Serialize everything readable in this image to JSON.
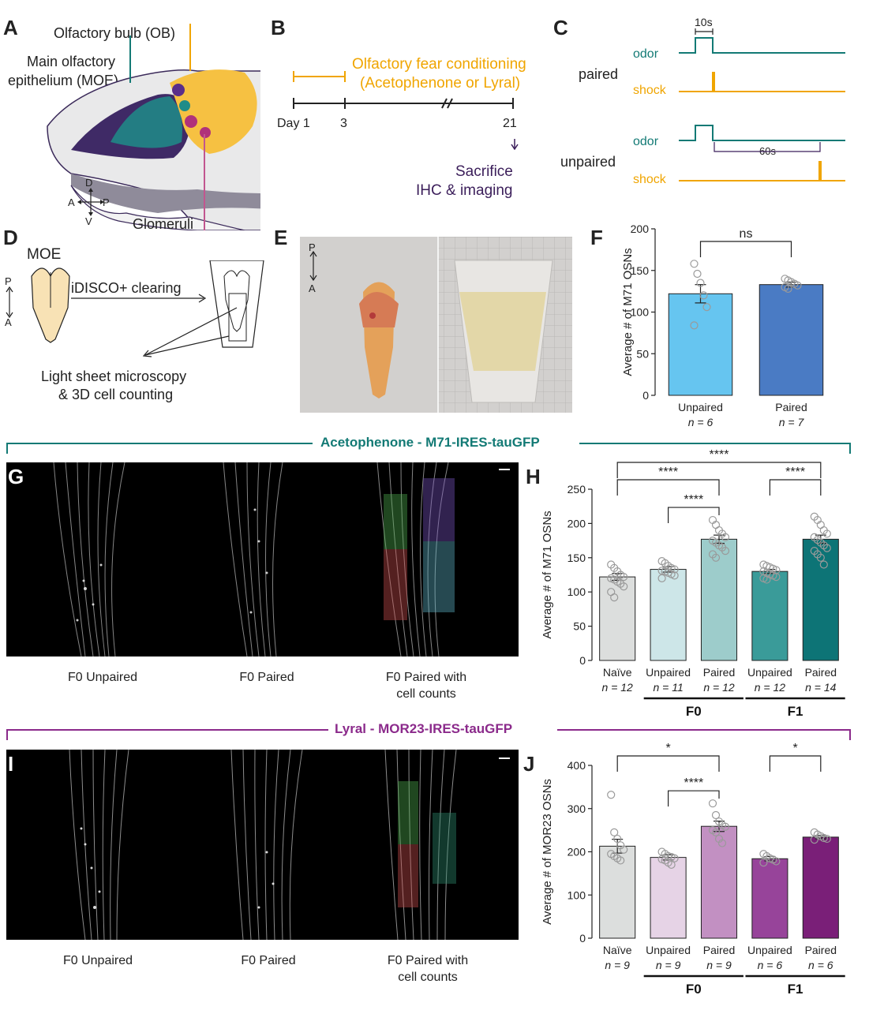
{
  "panels": {
    "A": {
      "label": "A",
      "ob_label": "Olfactory bulb (OB)",
      "moe_label_line1": "Main olfactory",
      "moe_label_line2": "epithelium (MOE)",
      "glomeruli_label": "Glomeruli",
      "axis": {
        "d": "D",
        "v": "V",
        "a": "A",
        "p": "P"
      }
    },
    "B": {
      "label": "B",
      "title_line1": "Olfactory fear conditioning",
      "title_line2": "(Acetophenone or Lyral)",
      "day_label": "Day 1",
      "day3": "3",
      "day21": "21",
      "outcome_line1": "Sacrifice",
      "outcome_line2": "IHC & imaging"
    },
    "C": {
      "label": "C",
      "duration_label": "10s",
      "paired_label": "paired",
      "unpaired_label": "unpaired",
      "odor_label": "odor",
      "shock_label": "shock",
      "delay_label": "60s"
    },
    "D": {
      "label": "D",
      "moe_label": "MOE",
      "clearing_label": "iDISCO+ clearing",
      "method_line1": "Light sheet microscopy",
      "method_line2": "& 3D cell counting",
      "axis": {
        "p": "P",
        "a": "A"
      }
    },
    "E": {
      "label": "E",
      "axis": {
        "p": "P",
        "a": "A"
      }
    },
    "G": {
      "label": "G",
      "banner": "Acetophenone - M71-IRES-tauGFP",
      "captions": [
        "F0 Unpaired",
        "F0 Paired",
        "F0 Paired with",
        "cell counts"
      ]
    },
    "I": {
      "label": "I",
      "banner": "Lyral - MOR23-IRES-tauGFP",
      "captions": [
        "F0 Unpaired",
        "F0 Paired",
        "F0 Paired with",
        "cell counts"
      ]
    }
  },
  "chart_data": [
    {
      "panel": "F",
      "type": "bar",
      "ylabel": "Average # of M71 OSNs",
      "ylim": [
        0,
        200
      ],
      "yticks": [
        0,
        50,
        100,
        150,
        200
      ],
      "categories": [
        "Unpaired",
        "Paired"
      ],
      "ns": [
        "n = 6",
        "n = 7"
      ],
      "values": [
        122,
        133
      ],
      "errors": [
        11,
        3
      ],
      "colors": [
        "#66c5f0",
        "#4a7bc4"
      ],
      "points": [
        [
          158,
          146,
          135,
          120,
          106,
          84
        ],
        [
          140,
          138,
          136,
          134,
          132,
          130,
          128
        ]
      ],
      "significance": [
        {
          "from": 0,
          "to": 1,
          "label": "ns",
          "level": 1
        }
      ],
      "groups": []
    },
    {
      "panel": "H",
      "type": "bar",
      "ylabel": "Average # of M71 OSNs",
      "ylim": [
        0,
        250
      ],
      "yticks": [
        0,
        50,
        100,
        150,
        200,
        250
      ],
      "categories": [
        "Naïve",
        "Unpaired",
        "Paired",
        "Unpaired",
        "Paired"
      ],
      "ns": [
        "n = 12",
        "n = 11",
        "n = 12",
        "n = 12",
        "n = 14"
      ],
      "values": [
        122,
        133,
        177,
        130,
        177
      ],
      "errors": [
        5,
        4,
        6,
        3,
        6
      ],
      "colors": [
        "#dcdedd",
        "#cde6e8",
        "#9dcccb",
        "#3a9b99",
        "#0d7476"
      ],
      "points": [
        [
          140,
          135,
          130,
          125,
          122,
          120,
          118,
          115,
          112,
          108,
          100,
          92
        ],
        [
          145,
          142,
          138,
          135,
          133,
          131,
          130,
          128,
          126,
          124,
          120
        ],
        [
          205,
          198,
          190,
          185,
          180,
          175,
          172,
          168,
          165,
          160,
          155,
          150
        ],
        [
          140,
          138,
          136,
          134,
          132,
          130,
          128,
          126,
          124,
          122,
          120,
          118
        ],
        [
          210,
          205,
          198,
          190,
          185,
          180,
          176,
          172,
          168,
          164,
          160,
          155,
          150,
          140
        ]
      ],
      "significance": [
        {
          "from": 0,
          "to": 4,
          "label": "****",
          "level": 3
        },
        {
          "from": 0,
          "to": 2,
          "label": "****",
          "level": 2
        },
        {
          "from": 3,
          "to": 4,
          "label": "****",
          "level": 2
        },
        {
          "from": 1,
          "to": 2,
          "label": "****",
          "level": 1
        }
      ],
      "groups": [
        {
          "label": "F0",
          "from": 1,
          "to": 2
        },
        {
          "label": "F1",
          "from": 3,
          "to": 4
        }
      ]
    },
    {
      "panel": "J",
      "type": "bar",
      "ylabel": "Average # of MOR23 OSNs",
      "ylim": [
        0,
        400
      ],
      "yticks": [
        0,
        100,
        200,
        300,
        400
      ],
      "categories": [
        "Naïve",
        "Unpaired",
        "Paired",
        "Unpaired",
        "Paired"
      ],
      "ns": [
        "n = 9",
        "n = 9",
        "n = 9",
        "n = 6",
        "n = 6"
      ],
      "values": [
        213,
        187,
        259,
        184,
        234
      ],
      "errors": [
        16,
        6,
        12,
        5,
        4
      ],
      "colors": [
        "#dcdedd",
        "#e6d3e6",
        "#c290c2",
        "#97449a",
        "#7a1f78"
      ],
      "points": [
        [
          332,
          245,
          230,
          215,
          205,
          195,
          190,
          185,
          180
        ],
        [
          200,
          195,
          190,
          188,
          185,
          183,
          180,
          175,
          170
        ],
        [
          312,
          285,
          270,
          262,
          258,
          250,
          245,
          230,
          220
        ],
        [
          195,
          190,
          185,
          182,
          178,
          175
        ],
        [
          245,
          240,
          236,
          232,
          230,
          228
        ]
      ],
      "significance": [
        {
          "from": 0,
          "to": 2,
          "label": "*",
          "level": 2
        },
        {
          "from": 1,
          "to": 2,
          "label": "****",
          "level": 1
        },
        {
          "from": 3,
          "to": 4,
          "label": "*",
          "level": 2
        }
      ],
      "groups": [
        {
          "label": "F0",
          "from": 1,
          "to": 2
        },
        {
          "label": "F1",
          "from": 3,
          "to": 4
        }
      ]
    }
  ],
  "panel_letters": {
    "F": "F",
    "H": "H",
    "J": "J"
  }
}
